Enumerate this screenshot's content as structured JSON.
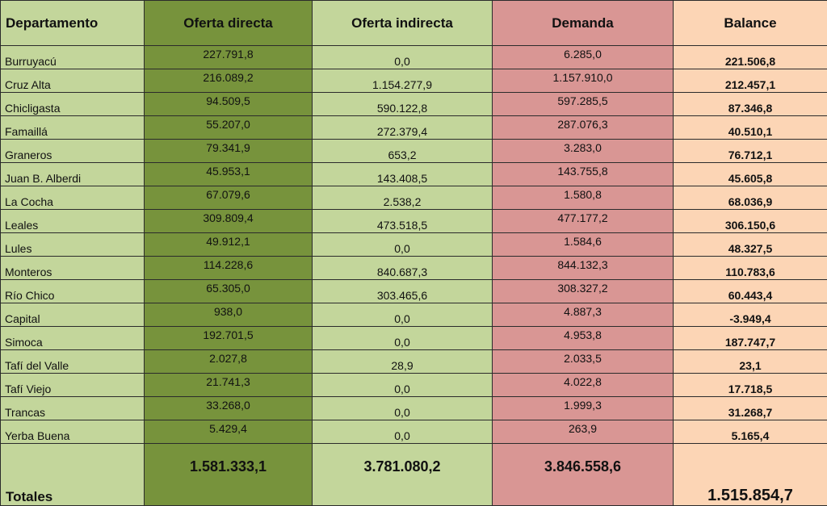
{
  "headers": {
    "departamento": "Departamento",
    "oferta_directa": "Oferta directa",
    "oferta_indirecta": "Oferta indirecta",
    "demanda": "Demanda",
    "balance": "Balance"
  },
  "rows": [
    {
      "departamento": "Burruyacú",
      "oferta_directa": "227.791,8",
      "oferta_indirecta": "0,0",
      "demanda": "6.285,0",
      "balance": "221.506,8"
    },
    {
      "departamento": "Cruz Alta",
      "oferta_directa": "216.089,2",
      "oferta_indirecta": "1.154.277,9",
      "demanda": "1.157.910,0",
      "balance": "212.457,1"
    },
    {
      "departamento": "Chicligasta",
      "oferta_directa": "94.509,5",
      "oferta_indirecta": "590.122,8",
      "demanda": "597.285,5",
      "balance": "87.346,8"
    },
    {
      "departamento": "Famaillá",
      "oferta_directa": "55.207,0",
      "oferta_indirecta": "272.379,4",
      "demanda": "287.076,3",
      "balance": "40.510,1"
    },
    {
      "departamento": "Graneros",
      "oferta_directa": "79.341,9",
      "oferta_indirecta": "653,2",
      "demanda": "3.283,0",
      "balance": "76.712,1"
    },
    {
      "departamento": "Juan B. Alberdi",
      "oferta_directa": "45.953,1",
      "oferta_indirecta": "143.408,5",
      "demanda": "143.755,8",
      "balance": "45.605,8"
    },
    {
      "departamento": "La Cocha",
      "oferta_directa": "67.079,6",
      "oferta_indirecta": "2.538,2",
      "demanda": "1.580,8",
      "balance": "68.036,9"
    },
    {
      "departamento": "Leales",
      "oferta_directa": "309.809,4",
      "oferta_indirecta": "473.518,5",
      "demanda": "477.177,2",
      "balance": "306.150,6"
    },
    {
      "departamento": "Lules",
      "oferta_directa": "49.912,1",
      "oferta_indirecta": "0,0",
      "demanda": "1.584,6",
      "balance": "48.327,5"
    },
    {
      "departamento": "Monteros",
      "oferta_directa": "114.228,6",
      "oferta_indirecta": "840.687,3",
      "demanda": "844.132,3",
      "balance": "110.783,6"
    },
    {
      "departamento": "Río Chico",
      "oferta_directa": "65.305,0",
      "oferta_indirecta": "303.465,6",
      "demanda": "308.327,2",
      "balance": "60.443,4"
    },
    {
      "departamento": "Capital",
      "oferta_directa": "938,0",
      "oferta_indirecta": "0,0",
      "demanda": "4.887,3",
      "balance": "-3.949,4"
    },
    {
      "departamento": "Simoca",
      "oferta_directa": "192.701,5",
      "oferta_indirecta": "0,0",
      "demanda": "4.953,8",
      "balance": "187.747,7"
    },
    {
      "departamento": "Tafí del Valle",
      "oferta_directa": "2.027,8",
      "oferta_indirecta": "28,9",
      "demanda": "2.033,5",
      "balance": "23,1"
    },
    {
      "departamento": "Tafí Viejo",
      "oferta_directa": "21.741,3",
      "oferta_indirecta": "0,0",
      "demanda": "4.022,8",
      "balance": "17.718,5"
    },
    {
      "departamento": "Trancas",
      "oferta_directa": "33.268,0",
      "oferta_indirecta": "0,0",
      "demanda": "1.999,3",
      "balance": "31.268,7"
    },
    {
      "departamento": "Yerba Buena",
      "oferta_directa": "5.429,4",
      "oferta_indirecta": "0,0",
      "demanda": "263,9",
      "balance": "5.165,4"
    }
  ],
  "totals": {
    "label": "Totales",
    "oferta_directa": "1.581.333,1",
    "oferta_indirecta": "3.781.080,2",
    "demanda": "3.846.558,6",
    "balance": "1.515.854,7"
  },
  "colors": {
    "departamento_bg": "#c3d69b",
    "oferta_directa_bg": "#77933c",
    "oferta_indirecta_bg": "#c3d69b",
    "demanda_bg": "#d99694",
    "balance_bg": "#fcd5b5"
  }
}
